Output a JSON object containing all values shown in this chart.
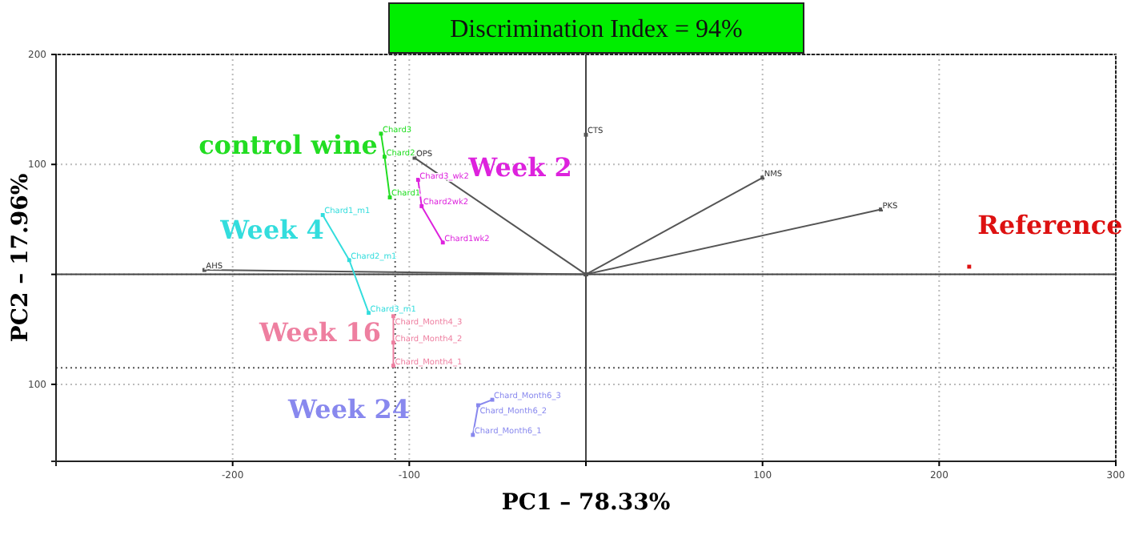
{
  "chart_data": {
    "type": "scatter",
    "title": "Discrimination Index = 94%",
    "xlabel": "PC1 – 78.33%",
    "ylabel": "PC2 – 17.96%",
    "xlim": [
      -300,
      300
    ],
    "ylim": [
      -170,
      200
    ],
    "xticks": [
      -200,
      -100,
      {
        "value": 0,
        "label": null
      },
      100,
      200,
      300
    ],
    "yticks": [
      {
        "value": -100,
        "label": "100"
      },
      {
        "value": 0,
        "label": null
      },
      100,
      200
    ],
    "grid": true,
    "marker": "square",
    "ref_lines": [
      {
        "axis": "x",
        "value": -108,
        "line_style": "dotted"
      },
      {
        "axis": "y",
        "value": -85,
        "line_style": "dotted"
      }
    ],
    "series": [
      {
        "type": "line",
        "color": "#555555",
        "x": [
          0,
          0
        ],
        "values": [
          0,
          127
        ],
        "value_labels": [
          null,
          "CTS"
        ]
      },
      {
        "type": "line",
        "color": "#555555",
        "x": [
          0,
          100
        ],
        "values": [
          0,
          88
        ],
        "value_labels": [
          null,
          "NMS"
        ]
      },
      {
        "type": "line",
        "color": "#555555",
        "x": [
          0,
          167
        ],
        "values": [
          0,
          59
        ],
        "value_labels": [
          null,
          "PKS"
        ]
      },
      {
        "type": "line",
        "color": "#555555",
        "x": [
          0,
          -97
        ],
        "values": [
          0,
          106
        ],
        "value_labels": [
          null,
          "OPS"
        ]
      },
      {
        "type": "line",
        "color": "#555555",
        "x": [
          0,
          -216
        ],
        "values": [
          0,
          4
        ],
        "value_labels": [
          null,
          "AHS"
        ]
      },
      {
        "type": "line",
        "name": "control wine",
        "color": "#22dd22",
        "x": [
          -116,
          -114,
          -111
        ],
        "values": [
          128,
          107,
          70
        ],
        "value_labels": [
          "Chard3",
          "Chard2",
          "Chard1"
        ]
      },
      {
        "type": "line",
        "name": "Week 2",
        "color": "#dd22dd",
        "x": [
          -95,
          -93,
          -81
        ],
        "values": [
          86,
          62,
          29
        ],
        "value_labels": [
          "Chard3_wk2",
          "Chard2wk2",
          "Chard1wk2"
        ]
      },
      {
        "type": "line",
        "name": "Week 4",
        "color": "#33dddd",
        "x": [
          -149,
          -134,
          -123
        ],
        "values": [
          54,
          13,
          -35
        ],
        "value_labels": [
          "Chard1_m1",
          "Chard2_m1",
          "Chard3_m1"
        ]
      },
      {
        "type": "line",
        "name": "Week 16",
        "color": "#ee7fa0",
        "x": [
          -109,
          -109,
          -109
        ],
        "values": [
          -38,
          -62,
          -83
        ],
        "value_labels": [
          "Chard_Month4_3",
          "Chard_Month4_2",
          "Chard_Month4_1"
        ]
      },
      {
        "type": "line",
        "name": "Week 24",
        "color": "#8888ee",
        "x": [
          -53,
          -61,
          -64
        ],
        "values": [
          -114,
          -119,
          -146
        ],
        "value_labels": [
          "Chard_Month6_3",
          "Chard_Month6_2",
          "Chard_Month6_1"
        ]
      },
      {
        "type": "scatter",
        "name": "Reference",
        "color": "#dd1111",
        "x": [
          217
        ],
        "values": [
          7
        ]
      }
    ]
  }
}
